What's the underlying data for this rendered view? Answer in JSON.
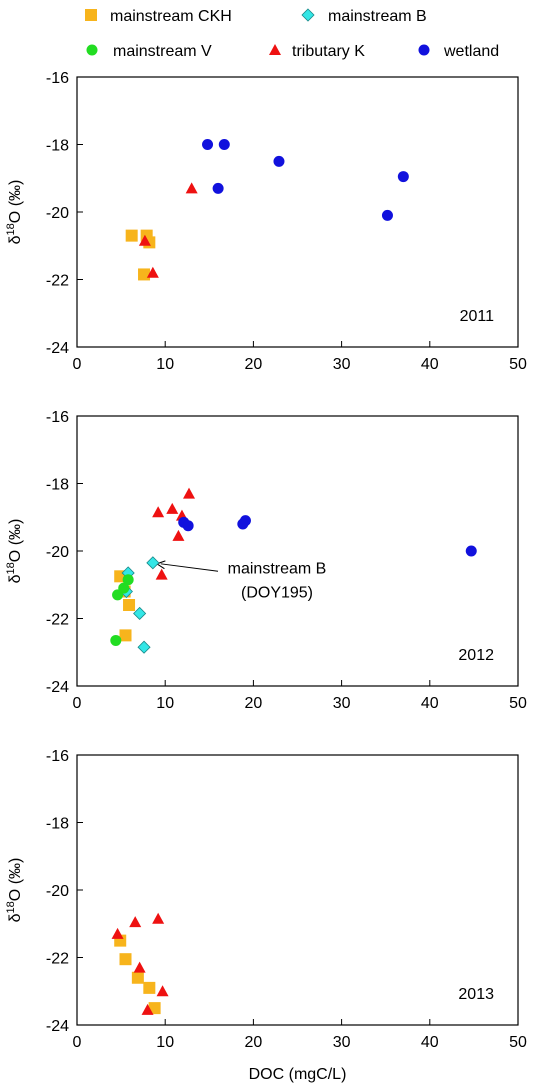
{
  "legend": [
    {
      "name": "mainstream CKH",
      "marker": "square",
      "color": "#f7b41c"
    },
    {
      "name": "mainstream B",
      "marker": "diamond",
      "color": "#33e6e6"
    },
    {
      "name": "mainstream V",
      "marker": "circle",
      "color": "#22dd22"
    },
    {
      "name": "tributary K",
      "marker": "triangle",
      "color": "#ee1111"
    },
    {
      "name": "wetland",
      "marker": "circle",
      "color": "#1111dd"
    }
  ],
  "chart_data": [
    {
      "type": "scatter",
      "year_label": "2011",
      "ylabel_prefix": "δ",
      "ylabel_sup": "18",
      "ylabel_suffix": "O (‰)",
      "xlabel": "",
      "xlim": [
        0,
        50
      ],
      "ylim": [
        -24,
        -16
      ],
      "xticks": [
        "0",
        "10",
        "20",
        "30",
        "40",
        "50"
      ],
      "yticks": [
        "-16",
        "-18",
        "-20",
        "-22",
        "-24"
      ],
      "series": [
        {
          "name": "mainstream CKH",
          "points": [
            [
              6.2,
              -20.7
            ],
            [
              7.9,
              -20.7
            ],
            [
              8.2,
              -20.9
            ],
            [
              7.6,
              -21.85
            ]
          ]
        },
        {
          "name": "mainstream B",
          "points": []
        },
        {
          "name": "mainstream V",
          "points": []
        },
        {
          "name": "tributary K",
          "points": [
            [
              13.0,
              -19.3
            ],
            [
              7.7,
              -20.85
            ],
            [
              8.6,
              -21.8
            ]
          ]
        },
        {
          "name": "wetland",
          "points": [
            [
              14.8,
              -18.0
            ],
            [
              16.7,
              -18.0
            ],
            [
              22.9,
              -18.5
            ],
            [
              16.0,
              -19.3
            ],
            [
              37.0,
              -18.95
            ],
            [
              35.2,
              -20.1
            ]
          ]
        }
      ]
    },
    {
      "type": "scatter",
      "year_label": "2012",
      "ylabel_prefix": "δ",
      "ylabel_sup": "18",
      "ylabel_suffix": "O (‰)",
      "xlabel": "",
      "xlim": [
        0,
        50
      ],
      "ylim": [
        -24,
        -16
      ],
      "xticks": [
        "0",
        "10",
        "20",
        "30",
        "40",
        "50"
      ],
      "yticks": [
        "-16",
        "-18",
        "-20",
        "-22",
        "-24"
      ],
      "annotation": {
        "line1": "mainstream B",
        "line2": "(DOY195)",
        "target": [
          8.6,
          -20.35
        ]
      },
      "series": [
        {
          "name": "mainstream CKH",
          "points": [
            [
              4.9,
              -20.75
            ],
            [
              5.4,
              -21.2
            ],
            [
              5.9,
              -21.6
            ],
            [
              5.5,
              -22.5
            ]
          ]
        },
        {
          "name": "mainstream B",
          "points": [
            [
              8.6,
              -20.35
            ],
            [
              5.8,
              -20.65
            ],
            [
              5.6,
              -21.2
            ],
            [
              7.1,
              -21.85
            ],
            [
              7.6,
              -22.85
            ]
          ]
        },
        {
          "name": "mainstream V",
          "points": [
            [
              5.8,
              -20.85
            ],
            [
              5.3,
              -21.1
            ],
            [
              4.6,
              -21.3
            ],
            [
              4.4,
              -22.65
            ]
          ]
        },
        {
          "name": "tributary K",
          "points": [
            [
              12.7,
              -18.3
            ],
            [
              9.2,
              -18.85
            ],
            [
              10.8,
              -18.75
            ],
            [
              11.9,
              -18.95
            ],
            [
              11.5,
              -19.55
            ],
            [
              9.6,
              -20.7
            ]
          ]
        },
        {
          "name": "wetland",
          "points": [
            [
              12.1,
              -19.15
            ],
            [
              12.6,
              -19.25
            ],
            [
              19.1,
              -19.1
            ],
            [
              18.8,
              -19.2
            ],
            [
              44.7,
              -20.0
            ]
          ]
        }
      ]
    },
    {
      "type": "scatter",
      "year_label": "2013",
      "ylabel_prefix": "δ",
      "ylabel_sup": "18",
      "ylabel_suffix": "O (‰)",
      "xlabel": "DOC (mgC/L)",
      "xlim": [
        0,
        50
      ],
      "ylim": [
        -24,
        -16
      ],
      "xticks": [
        "0",
        "10",
        "20",
        "30",
        "40",
        "50"
      ],
      "yticks": [
        "-16",
        "-18",
        "-20",
        "-22",
        "-24"
      ],
      "series": [
        {
          "name": "mainstream CKH",
          "points": [
            [
              4.9,
              -21.5
            ],
            [
              5.5,
              -22.05
            ],
            [
              6.9,
              -22.6
            ],
            [
              8.2,
              -22.9
            ],
            [
              8.8,
              -23.5
            ]
          ]
        },
        {
          "name": "mainstream B",
          "points": []
        },
        {
          "name": "mainstream V",
          "points": []
        },
        {
          "name": "tributary K",
          "points": [
            [
              4.6,
              -21.3
            ],
            [
              6.6,
              -20.95
            ],
            [
              9.2,
              -20.85
            ],
            [
              7.1,
              -22.3
            ],
            [
              9.7,
              -23.0
            ],
            [
              8.0,
              -23.55
            ]
          ]
        },
        {
          "name": "wetland",
          "points": []
        }
      ]
    }
  ]
}
